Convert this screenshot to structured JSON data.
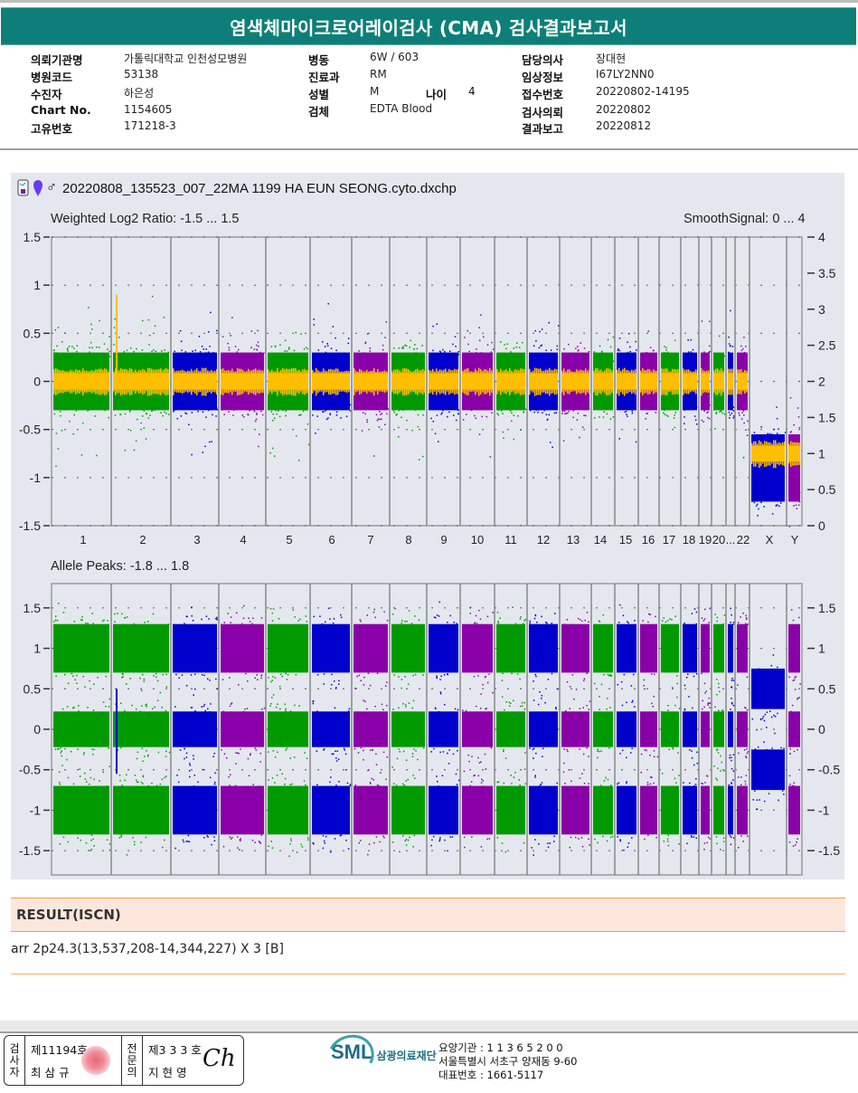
{
  "report": {
    "title": "염색체마이크로어레이검사 (CMA) 검사결과보고서"
  },
  "patient_info": {
    "col1": [
      {
        "label": "의뢰기관명",
        "value": "가톨릭대학교 인천성모병원"
      },
      {
        "label": "병원코드",
        "value": "53138"
      },
      {
        "label": "수진자",
        "value": "하은성"
      },
      {
        "label": "Chart No.",
        "value": "1154605"
      },
      {
        "label": "고유번호",
        "value": "171218-3"
      }
    ],
    "col2": [
      {
        "label": "병동",
        "value": "6W / 603"
      },
      {
        "label": "진료과",
        "value": "RM"
      },
      {
        "label": "성별",
        "value": "M"
      },
      {
        "label": "검체",
        "value": "EDTA Blood"
      }
    ],
    "age": {
      "label": "나이",
      "value": "4"
    },
    "col3": [
      {
        "label": "담당의사",
        "value": "장대현"
      },
      {
        "label": "임상정보",
        "value": "I67LY2NN0"
      },
      {
        "label": "접수번호",
        "value": "20220802-14195"
      },
      {
        "label": "검사의뢰",
        "value": "20220802"
      },
      {
        "label": "결과보고",
        "value": "20220812"
      }
    ]
  },
  "plot_header": {
    "icons": [
      "chip-file-icon",
      "female-marker-icon",
      "male-symbol-icon"
    ],
    "male_symbol": "♂",
    "filename": "20220808_135523_007_22MA 1199 HA EUN SEONG.cyto.dxchp"
  },
  "colors": {
    "green": "#009a00",
    "blue": "#0000cc",
    "purple": "#8a00a8",
    "smooth": "#ffbf00",
    "panel": "#e4e8ee",
    "title_bar": "#0e7f78",
    "result_bg": "#fde7dd",
    "result_border": "#f0a040"
  },
  "chart_data": [
    {
      "type": "scatter",
      "title": "Weighted Log2 Ratio: -1.5 ... 1.5",
      "right_title": "SmoothSignal: 0 ... 4",
      "ylim": [
        -1.5,
        1.5
      ],
      "y2lim": [
        0,
        4
      ],
      "yticks": [
        "1.5",
        "1",
        "0.5",
        "0",
        "-0.5",
        "-1",
        "-1.5"
      ],
      "y2ticks": [
        "4",
        "3.5",
        "3",
        "2.5",
        "2",
        "1.5",
        "1",
        "0.5",
        "0"
      ],
      "x_tick_labels": [
        "1",
        "2",
        "3",
        "4",
        "5",
        "6",
        "7",
        "8",
        "9",
        "10",
        "11",
        "12",
        "13",
        "14",
        "15",
        "16",
        "17",
        "18",
        "19",
        "20",
        "...",
        "22",
        "X",
        "Y"
      ],
      "chromosomes": [
        "1",
        "2",
        "3",
        "4",
        "5",
        "6",
        "7",
        "8",
        "9",
        "10",
        "11",
        "12",
        "13",
        "14",
        "15",
        "16",
        "17",
        "18",
        "19",
        "20",
        "21",
        "22",
        "X",
        "Y"
      ],
      "series": [
        {
          "name": "Weighted Log2 Ratio",
          "spread": 0.4,
          "center": [
            0,
            0,
            0,
            0,
            0,
            0,
            0,
            0,
            0,
            0,
            0,
            0,
            0,
            0,
            0,
            0,
            0,
            0,
            0,
            0,
            0,
            0,
            -0.9,
            -0.9
          ]
        },
        {
          "name": "SmoothSignal",
          "values_copy_number": [
            2,
            2,
            2,
            2,
            2,
            2,
            2,
            2,
            2,
            2,
            2,
            2,
            2,
            2,
            2,
            2,
            2,
            2,
            2,
            2,
            2,
            2,
            1,
            1
          ]
        }
      ],
      "annotation": "2p24.3 gain (copy number 3)"
    },
    {
      "type": "scatter",
      "title": "Allele Peaks: -1.8 ... 1.8",
      "ylim": [
        -1.8,
        1.8
      ],
      "yticks": [
        "1.5",
        "1",
        "0.5",
        "0",
        "-0.5",
        "-1",
        "-1.5"
      ],
      "y2ticks": [
        "1.5",
        "1",
        "0.5",
        "0",
        "-0.5",
        "-1",
        "-1.5"
      ],
      "bands": [
        1,
        0,
        -1
      ],
      "x_band": [
        0.5,
        -0.5
      ]
    }
  ],
  "result": {
    "header": "RESULT(ISCN)",
    "text": "arr 2p24.3(13,537,208-14,344,227) X 3 [B]"
  },
  "footer": {
    "examiner_label": "검사자",
    "examiner_no": "제11194호",
    "examiner_name": "최 삼 규",
    "specialist_label": "전문의",
    "specialist_no": "제3 3 3 호",
    "specialist_name": "지 현 영",
    "signature": "Ch",
    "org_logo": "SML",
    "org_name": "삼광의료재단",
    "org_lines": [
      "요양기관 : 1 1 3 6 5 2 0 0",
      "서울특별시 서초구 양재동 9-60",
      "대표번호 : 1661-5117"
    ]
  }
}
